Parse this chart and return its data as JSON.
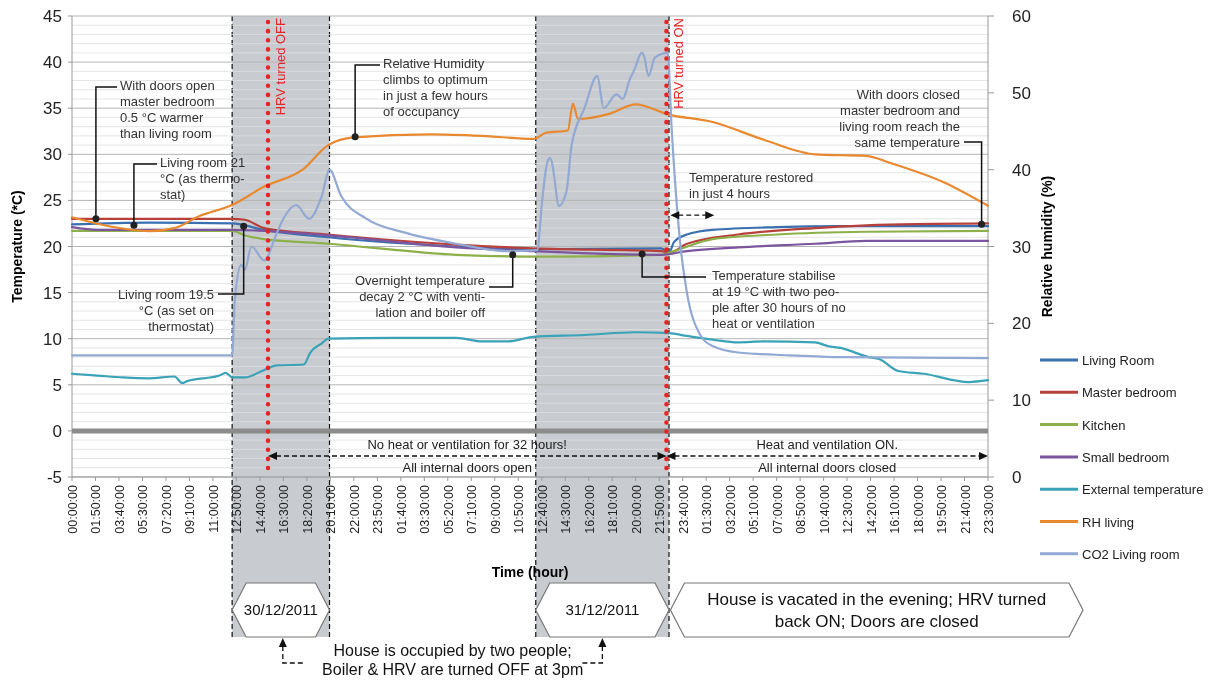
{
  "chart_data": {
    "type": "line",
    "xlabel": "Time (hour)",
    "ylabel": "Temperature (*C)",
    "y2label": "Relative humidity (%)",
    "xlim": [
      "2011-12-30T00:00",
      "2012-01-01T23:30"
    ],
    "ylim": [
      -5,
      45
    ],
    "y2lim": [
      0,
      60
    ],
    "xticks": [
      {
        "value": "2011-12-30T00:00",
        "label": "00:00:00"
      },
      {
        "value": "2011-12-30T01:50",
        "label": "01:50:00"
      },
      {
        "value": "2011-12-30T03:40",
        "label": "03:40:00"
      },
      {
        "value": "2011-12-30T05:30",
        "label": "05:30:00"
      },
      {
        "value": "2011-12-30T07:20",
        "label": "07:20:00"
      },
      {
        "value": "2011-12-30T09:10",
        "label": "09:10:00"
      },
      {
        "value": "2011-12-30T11:00",
        "label": "11:00:00"
      },
      {
        "value": "2011-12-30T12:50",
        "label": "12:50:00"
      },
      {
        "value": "2011-12-30T14:40",
        "label": "14:40:00"
      },
      {
        "value": "2011-12-30T16:30",
        "label": "16:30:00"
      },
      {
        "value": "2011-12-30T18:20",
        "label": "18:20:00"
      },
      {
        "value": "2011-12-30T20:10",
        "label": "20:10:00"
      },
      {
        "value": "2011-12-30T22:00",
        "label": "22:00:00"
      },
      {
        "value": "2011-12-30T23:50",
        "label": "23:50:00"
      },
      {
        "value": "2011-12-31T01:40",
        "label": "01:40:00"
      },
      {
        "value": "2011-12-31T03:30",
        "label": "03:30:00"
      },
      {
        "value": "2011-12-31T05:20",
        "label": "05:20:00"
      },
      {
        "value": "2011-12-31T07:10",
        "label": "07:10:00"
      },
      {
        "value": "2011-12-31T09:00",
        "label": "09:00:00"
      },
      {
        "value": "2011-12-31T10:50",
        "label": "10:50:00"
      },
      {
        "value": "2011-12-31T12:40",
        "label": "12:40:00"
      },
      {
        "value": "2011-12-31T14:30",
        "label": "14:30:00"
      },
      {
        "value": "2011-12-31T16:20",
        "label": "16:20:00"
      },
      {
        "value": "2011-12-31T18:10",
        "label": "18:10:00"
      },
      {
        "value": "2011-12-31T20:00",
        "label": "20:00:00"
      },
      {
        "value": "2011-12-31T21:50",
        "label": "21:50:00"
      },
      {
        "value": "2011-12-31T23:40",
        "label": "23:40:00"
      },
      {
        "value": "2012-01-01T01:30",
        "label": "01:30:00"
      },
      {
        "value": "2012-01-01T03:20",
        "label": "03:20:00"
      },
      {
        "value": "2012-01-01T05:10",
        "label": "05:10:00"
      },
      {
        "value": "2012-01-01T07:00",
        "label": "07:00:00"
      },
      {
        "value": "2012-01-01T08:50",
        "label": "08:50:00"
      },
      {
        "value": "2012-01-01T10:40",
        "label": "10:40:00"
      },
      {
        "value": "2012-01-01T12:30",
        "label": "12:30:00"
      },
      {
        "value": "2012-01-01T14:20",
        "label": "14:20:00"
      },
      {
        "value": "2012-01-01T16:10",
        "label": "16:10:00"
      },
      {
        "value": "2012-01-01T18:00",
        "label": "18:00:00"
      },
      {
        "value": "2012-01-01T19:50",
        "label": "19:50:00"
      },
      {
        "value": "2012-01-01T21:40",
        "label": "21:40:00"
      },
      {
        "value": "2012-01-01T23:30",
        "label": "23:30:00"
      }
    ],
    "yticks": [
      -5,
      0,
      5,
      10,
      15,
      20,
      25,
      30,
      35,
      40,
      45
    ],
    "y2ticks": [
      0,
      10,
      20,
      30,
      40,
      50,
      60
    ],
    "grid": "y",
    "legend": "right",
    "series": [
      {
        "name": "Living Room",
        "color": "#3a6fb0",
        "x": [
          "2011-12-30T00:00",
          "2011-12-30T06:00",
          "2011-12-30T12:30",
          "2011-12-30T15:00",
          "2011-12-30T20:00",
          "2011-12-31T06:00",
          "2011-12-31T12:00",
          "2011-12-31T22:00",
          "2011-12-31T22:36",
          "2011-12-31T23:00",
          "2012-01-01T00:00",
          "2012-01-01T02:00",
          "2012-01-01T07:00",
          "2012-01-01T12:00",
          "2012-01-01T23:30"
        ],
        "values": [
          22.4,
          22.6,
          22.5,
          21.8,
          21.0,
          20.0,
          19.7,
          19.8,
          19.3,
          20.5,
          21.3,
          21.8,
          22.1,
          22.2,
          22.2
        ]
      },
      {
        "name": "Master bedroom",
        "color": "#b8403a",
        "x": [
          "2011-12-30T00:00",
          "2011-12-30T06:00",
          "2011-12-30T12:30",
          "2011-12-30T13:30",
          "2011-12-30T15:00",
          "2011-12-30T20:00",
          "2011-12-31T06:00",
          "2011-12-31T12:00",
          "2011-12-31T22:00",
          "2011-12-31T22:36",
          "2012-01-01T00:00",
          "2012-01-01T04:00",
          "2012-01-01T10:00",
          "2012-01-01T14:00",
          "2012-01-01T23:30"
        ],
        "values": [
          23.0,
          23.0,
          23.0,
          22.9,
          22.0,
          21.3,
          20.2,
          19.8,
          19.5,
          19.3,
          20.3,
          21.3,
          22.0,
          22.3,
          22.5
        ]
      },
      {
        "name": "Kitchen",
        "color": "#8db04a",
        "x": [
          "2011-12-30T00:00",
          "2011-12-30T06:00",
          "2011-12-30T12:30",
          "2011-12-30T13:30",
          "2011-12-30T15:00",
          "2011-12-30T20:00",
          "2011-12-31T06:00",
          "2011-12-31T12:00",
          "2011-12-31T22:00",
          "2011-12-31T23:00",
          "2012-01-01T02:00",
          "2012-01-01T07:00",
          "2012-01-01T14:00",
          "2012-01-01T23:30"
        ],
        "values": [
          21.7,
          21.7,
          21.7,
          21.2,
          20.8,
          20.3,
          19.1,
          18.9,
          19.1,
          19.5,
          20.8,
          21.3,
          21.6,
          21.7
        ]
      },
      {
        "name": "Small bedroom",
        "color": "#7b559e",
        "x": [
          "2011-12-30T00:00",
          "2011-12-30T02:00",
          "2011-12-30T12:30",
          "2011-12-30T15:00",
          "2011-12-30T20:00",
          "2011-12-31T06:00",
          "2011-12-31T12:00",
          "2011-12-31T22:00",
          "2012-01-01T00:00",
          "2012-01-01T04:00",
          "2012-01-01T10:00",
          "2012-01-01T14:00",
          "2012-01-01T23:30"
        ],
        "values": [
          22.1,
          21.8,
          21.8,
          21.7,
          21.2,
          19.9,
          19.5,
          19.1,
          19.5,
          19.9,
          20.3,
          20.6,
          20.6
        ]
      },
      {
        "name": "External temperature",
        "color": "#3aa3b8",
        "x": [
          "2011-12-30T00:00",
          "2011-12-30T02:00",
          "2011-12-30T04:00",
          "2011-12-30T06:00",
          "2011-12-30T08:00",
          "2011-12-30T08:36",
          "2011-12-30T09:00",
          "2011-12-30T11:30",
          "2011-12-30T12:00",
          "2011-12-30T12:30",
          "2011-12-30T13:30",
          "2011-12-30T15:00",
          "2011-12-30T16:00",
          "2011-12-30T18:06",
          "2011-12-30T18:36",
          "2011-12-30T19:30",
          "2011-12-30T20:00",
          "2011-12-31T01:00",
          "2011-12-31T06:00",
          "2011-12-31T08:00",
          "2011-12-31T10:00",
          "2011-12-31T12:00",
          "2011-12-31T16:00",
          "2011-12-31T20:00",
          "2011-12-31T22:36",
          "2012-01-01T00:00",
          "2012-01-01T02:00",
          "2012-01-01T04:00",
          "2012-01-01T06:00",
          "2012-01-01T10:00",
          "2012-01-01T11:00",
          "2012-01-01T12:00",
          "2012-01-01T14:12",
          "2012-01-01T15:00",
          "2012-01-01T16:30",
          "2012-01-01T18:30",
          "2012-01-01T22:00",
          "2012-01-01T23:30"
        ],
        "values": [
          6.2,
          6.0,
          5.8,
          5.7,
          5.9,
          5.2,
          5.4,
          6.0,
          6.3,
          5.8,
          5.8,
          6.6,
          7.1,
          7.2,
          8.5,
          9.5,
          10.0,
          10.1,
          10.1,
          9.7,
          9.7,
          10.2,
          10.4,
          10.7,
          10.6,
          10.3,
          9.9,
          9.6,
          9.7,
          9.6,
          9.2,
          9.0,
          8.0,
          7.8,
          6.5,
          6.2,
          5.3,
          5.5
        ]
      },
      {
        "name": "RH living",
        "color": "#e8892f",
        "axis": "y2",
        "x": [
          "2011-12-30T00:00",
          "2011-12-30T03:00",
          "2011-12-30T06:00",
          "2011-12-30T08:00",
          "2011-12-30T10:00",
          "2011-12-30T12:30",
          "2011-12-30T15:00",
          "2011-12-30T18:00",
          "2011-12-30T20:00",
          "2011-12-30T22:00",
          "2011-12-31T04:00",
          "2011-12-31T08:00",
          "2011-12-31T12:00",
          "2011-12-31T13:00",
          "2011-12-31T14:42",
          "2011-12-31T15:06",
          "2011-12-31T15:30",
          "2011-12-31T18:00",
          "2011-12-31T20:00",
          "2011-12-31T22:30",
          "2012-01-01T02:00",
          "2012-01-01T06:00",
          "2012-01-01T10:00",
          "2012-01-01T14:00",
          "2012-01-01T16:00",
          "2012-01-01T20:00",
          "2012-01-01T23:30"
        ],
        "values": [
          33.8,
          32.6,
          32.0,
          32.4,
          34.0,
          35.4,
          37.8,
          40.0,
          43.2,
          44.2,
          44.6,
          44.4,
          44.0,
          44.8,
          45.1,
          48.6,
          46.6,
          47.3,
          48.5,
          47.2,
          46.2,
          43.9,
          42.0,
          41.8,
          40.8,
          38.4,
          35.3
        ]
      },
      {
        "name": "CO2 Living room",
        "color": "#92a9d4",
        "x": [
          "2011-12-30T00:00",
          "2011-12-30T06:00",
          "2011-12-30T12:30",
          "2011-12-30T12:42",
          "2011-12-30T13:12",
          "2011-12-30T13:30",
          "2011-12-30T14:00",
          "2011-12-30T15:00",
          "2011-12-30T16:00",
          "2011-12-30T16:30",
          "2011-12-30T17:30",
          "2011-12-30T18:30",
          "2011-12-30T19:30",
          "2011-12-30T20:06",
          "2011-12-30T21:00",
          "2011-12-30T23:00",
          "2011-12-31T02:00",
          "2011-12-31T06:00",
          "2011-12-31T10:00",
          "2011-12-31T12:18",
          "2011-12-31T12:42",
          "2011-12-31T13:00",
          "2011-12-31T13:10",
          "2011-12-31T13:18",
          "2011-12-31T13:26",
          "2011-12-31T13:36",
          "2011-12-31T14:00",
          "2011-12-31T14:36",
          "2011-12-31T15:00",
          "2011-12-31T16:00",
          "2011-12-31T17:00",
          "2011-12-31T17:30",
          "2011-12-31T18:30",
          "2011-12-31T19:00",
          "2011-12-31T19:30",
          "2011-12-31T20:00",
          "2011-12-31T20:20",
          "2011-12-31T20:30",
          "2011-12-31T20:40",
          "2011-12-31T21:00",
          "2011-12-31T21:30",
          "2011-12-31T22:30",
          "2011-12-31T22:48",
          "2011-12-31T23:30",
          "2012-01-01T00:00",
          "2012-01-01T01:00",
          "2012-01-01T02:00",
          "2012-01-01T04:00",
          "2012-01-01T08:00",
          "2012-01-01T12:00",
          "2012-01-01T23:30"
        ],
        "values": [
          8.2,
          8.2,
          8.2,
          14,
          18,
          17.5,
          20,
          18.5,
          21.5,
          23,
          24.5,
          23,
          25.5,
          28.3,
          25.5,
          23.0,
          21.5,
          20.3,
          19.5,
          19.6,
          25,
          28.4,
          29.4,
          29.6,
          29.3,
          28.0,
          24.4,
          26,
          31,
          35,
          38.5,
          35,
          36.5,
          36,
          38,
          39.5,
          40.8,
          41,
          40.6,
          38.5,
          40.5,
          41,
          33,
          20,
          15,
          10.5,
          9.2,
          8.5,
          8.2,
          8.0,
          7.9
        ]
      }
    ],
    "bands": [
      {
        "axis": "x",
        "from": "2011-12-30T12:30",
        "to": "2011-12-30T20:06",
        "color": "#c8cbd0"
      },
      {
        "axis": "x",
        "from": "2011-12-31T12:12",
        "to": "2011-12-31T22:36",
        "color": "#c8cbd0"
      }
    ],
    "ref_lines": [
      {
        "axis": "x",
        "value": "2011-12-30T15:18",
        "label": "HRV turned OFF",
        "color": "#e52424",
        "line_style": "dotted"
      },
      {
        "axis": "x",
        "value": "2011-12-31T22:24",
        "label": "HRV turned ON",
        "color": "#e52424",
        "line_style": "dotted"
      },
      {
        "axis": "y",
        "value": 0,
        "color": "#8c8c8c"
      }
    ],
    "annotations": [
      {
        "text": "With doors open master bedroom 0.5 °C warmer than living room",
        "x": "2011-12-30T01:52",
        "y": 23
      },
      {
        "text": "Living room 21 °C (as thermo-stat)",
        "x": "2011-12-30T04:50",
        "y": 22.3
      },
      {
        "text": "Living room 19.5 °C (as set on thermostat)",
        "x": "2011-12-30T13:24",
        "y": 22.2
      },
      {
        "text": "Relative Humidity climbs to optimum in just a few hours of occupancy",
        "x": "2011-12-30T22:06",
        "y": 31.9
      },
      {
        "text": "Overnight temperature decay 2 °C with venti-lation and boiler off",
        "x": "2011-12-31T10:24",
        "y": 19.1
      },
      {
        "text": "Temperature stabilise at 19 °C with two peo-ple after 30 hours of no heat or ventilation",
        "x": "2011-12-31T20:30",
        "y": 19.2
      },
      {
        "text": "Temperature restored in just 4 hours",
        "x": "2011-12-31T22:42",
        "y": 23.4
      },
      {
        "text": "With doors closed master bedroom and living room reach the same temperature",
        "x": "2012-01-01T23:00",
        "y": 22.4
      },
      "No heat or ventilation for 32 hours!",
      "All internal doors open",
      "Heat and ventilation ON.",
      "All internal doors closed",
      "30/12/2011",
      "31/12/2011",
      "House is vacated in the evening; HRV turned back ON; Doors are closed",
      "House is occupied by two people; Boiler & HRV are turned OFF at 3pm"
    ]
  }
}
